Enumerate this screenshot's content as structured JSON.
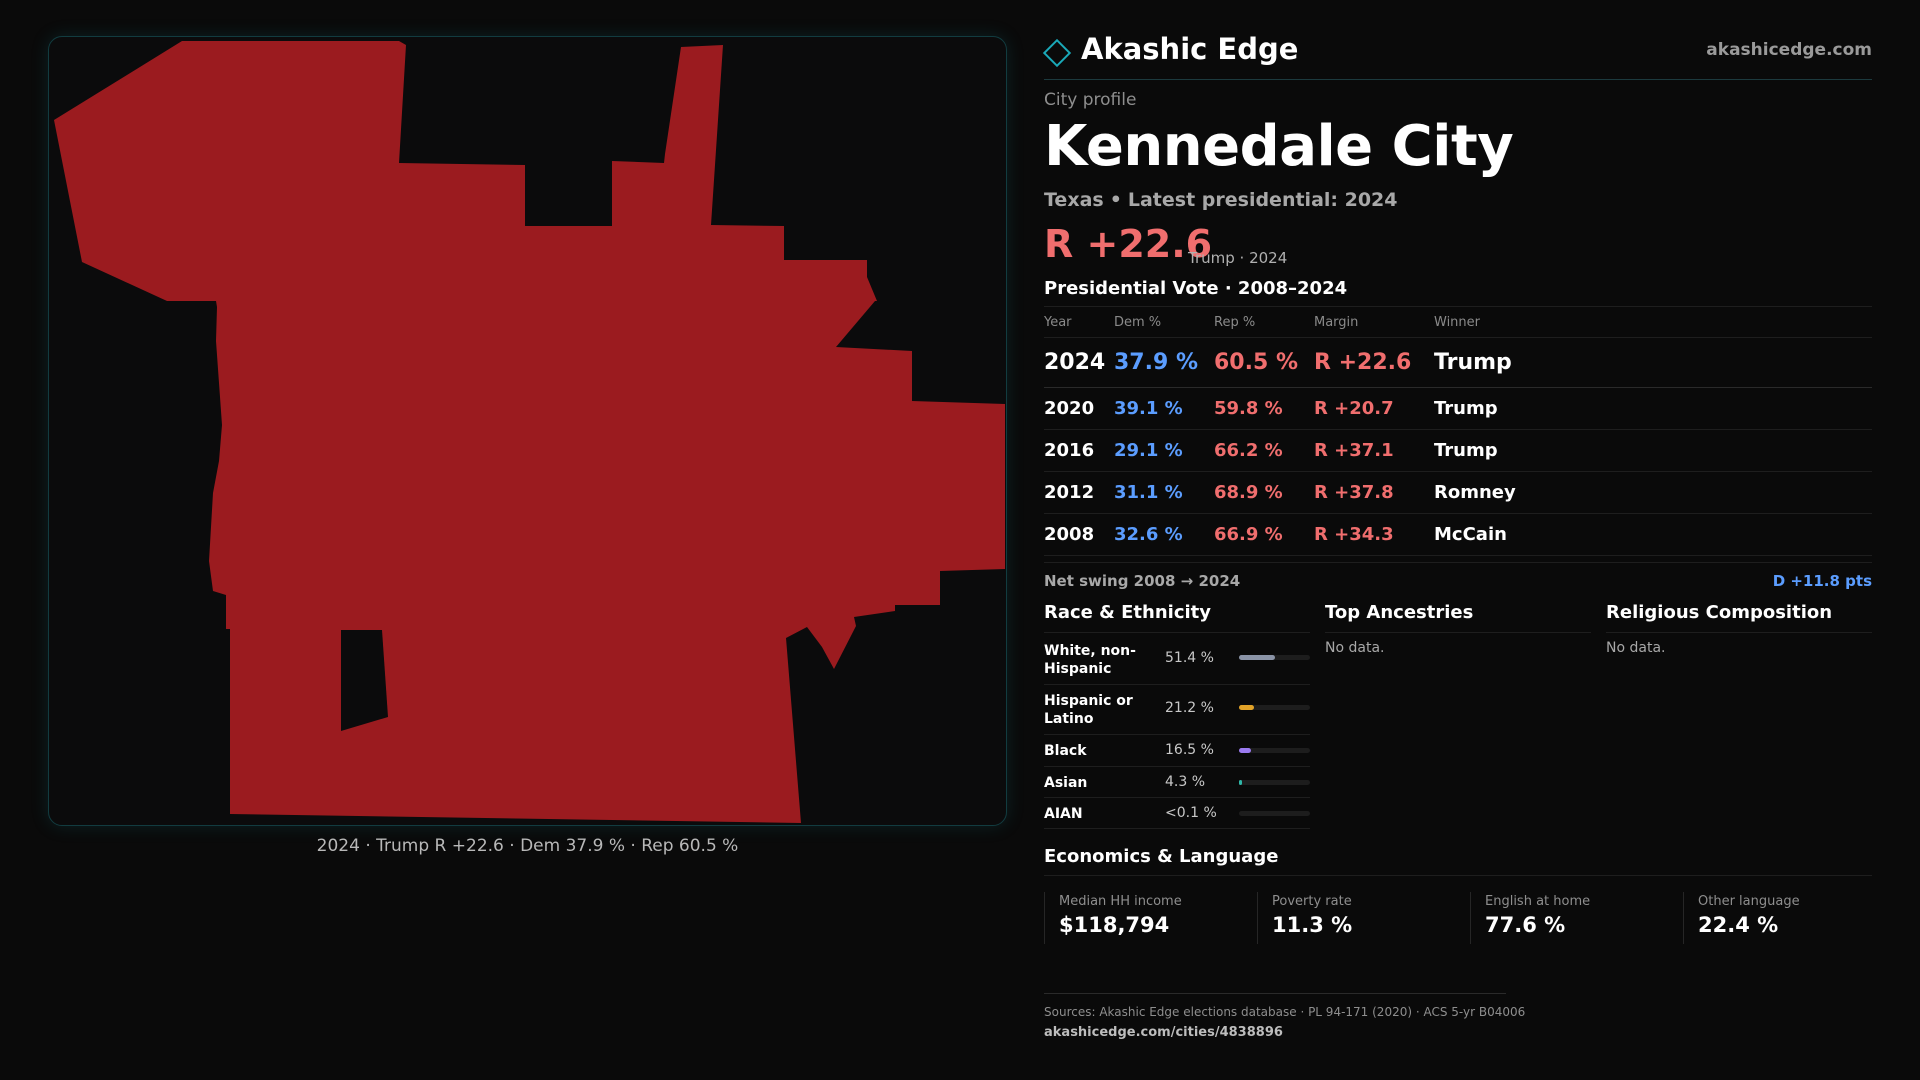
{
  "map": {
    "caption": "2024 · Trump R +22.6 · Dem 37.9 % · Rep 60.5 %",
    "fill_color": "#9b1b1f"
  },
  "header": {
    "brand": "Akashic Edge",
    "site": "akashicedge.com",
    "logo_icon": "diamond-icon"
  },
  "profile": {
    "eyebrow": "City profile",
    "name": "Kennedale City",
    "state": "Texas",
    "latest_label": "Latest presidential: 2024",
    "margin": "R +22.6",
    "margin_note": "Trump · 2024"
  },
  "vote": {
    "title": "Presidential Vote · 2008–2024",
    "headers": [
      "Year",
      "Dem %",
      "Rep %",
      "Margin",
      "Winner"
    ],
    "rows": [
      {
        "year": "2024",
        "dem": "37.9 %",
        "rep": "60.5 %",
        "margin": "R +22.6",
        "winner": "Trump"
      },
      {
        "year": "2020",
        "dem": "39.1 %",
        "rep": "59.8 %",
        "margin": "R +20.7",
        "winner": "Trump"
      },
      {
        "year": "2016",
        "dem": "29.1 %",
        "rep": "66.2 %",
        "margin": "R +37.1",
        "winner": "Trump"
      },
      {
        "year": "2012",
        "dem": "31.1 %",
        "rep": "68.9 %",
        "margin": "R +37.8",
        "winner": "Romney"
      },
      {
        "year": "2008",
        "dem": "32.6 %",
        "rep": "66.9 %",
        "margin": "R +34.3",
        "winner": "McCain"
      }
    ],
    "swing_label": "Net swing 2008 → 2024",
    "swing_value": "D +11.8 pts"
  },
  "race": {
    "title": "Race & Ethnicity",
    "items": [
      {
        "label": "White, non-Hispanic",
        "value": "51.4 %",
        "share": 0.514,
        "color": "#8a93a6"
      },
      {
        "label": "Hispanic or Latino",
        "value": "21.2 %",
        "share": 0.212,
        "color": "#e2a328"
      },
      {
        "label": "Black",
        "value": "16.5 %",
        "share": 0.165,
        "color": "#9b7bf0"
      },
      {
        "label": "Asian",
        "value": "4.3 %",
        "share": 0.043,
        "color": "#2fb7a8"
      },
      {
        "label": "AIAN",
        "value": "<0.1 %",
        "share": 0.0,
        "color": "#666666"
      }
    ]
  },
  "ancestries": {
    "title": "Top Ancestries",
    "empty": "No data."
  },
  "religion": {
    "title": "Religious Composition",
    "empty": "No data."
  },
  "economics": {
    "title": "Economics & Language",
    "stats": [
      {
        "label": "Median HH income",
        "value": "$118,794"
      },
      {
        "label": "Poverty rate",
        "value": "11.3 %"
      },
      {
        "label": "English at home",
        "value": "77.6 %"
      },
      {
        "label": "Other language",
        "value": "22.4 %"
      }
    ]
  },
  "footer": {
    "sources": "Sources: Akashic Edge elections database · PL 94-171 (2020) · ACS 5-yr B04006",
    "url": "akashicedge.com/cities/4838896"
  }
}
